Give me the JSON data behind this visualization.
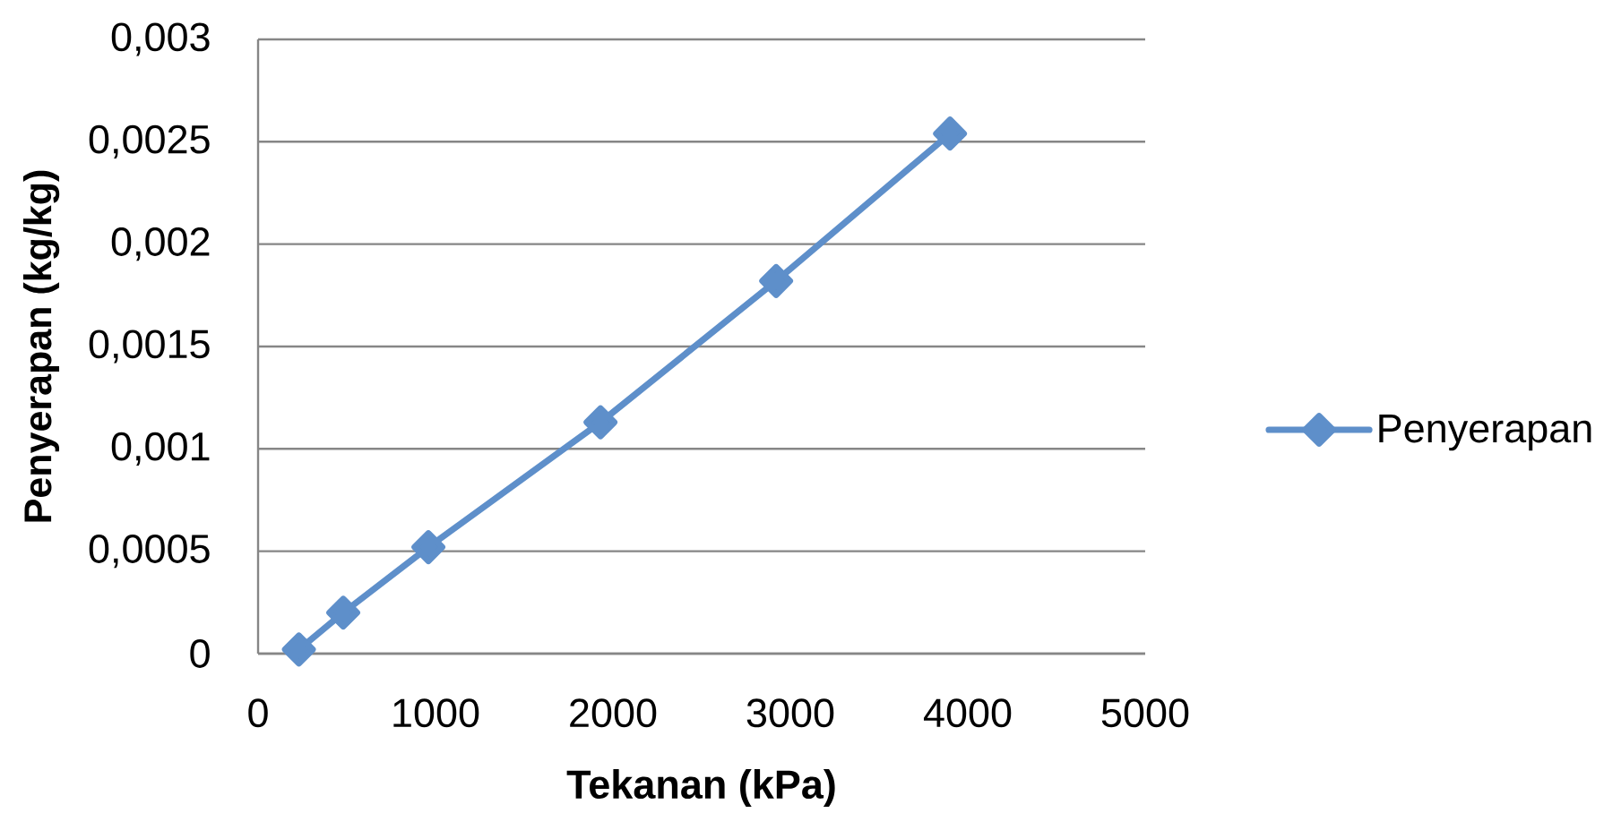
{
  "chart_data": {
    "type": "line",
    "xlabel": "Tekanan (kPa)",
    "ylabel": "Penyerapan (kg/kg)",
    "x": [
      230,
      480,
      960,
      1930,
      2920,
      3900
    ],
    "series": [
      {
        "name": "Penyerapan",
        "color": "#5e8fca",
        "values": [
          2e-05,
          0.0002,
          0.00052,
          0.00113,
          0.00182,
          0.00254
        ]
      }
    ],
    "xlim": [
      0,
      5000
    ],
    "xticks": [
      0,
      1000,
      2000,
      3000,
      4000,
      5000
    ],
    "ylim": [
      0,
      0.003
    ],
    "yticks": [
      0,
      {
        "value": 0.0005,
        "label": "0,0005"
      },
      {
        "value": 0.001,
        "label": "0,001"
      },
      {
        "value": 0.0015,
        "label": "0,0015"
      },
      {
        "value": 0.002,
        "label": "0,002"
      },
      {
        "value": 0.0025,
        "label": "0,0025"
      },
      {
        "value": 0.003,
        "label": "0,003"
      }
    ],
    "grid": "y",
    "legend": "right",
    "marker": "diamond",
    "line_style": "solid"
  }
}
